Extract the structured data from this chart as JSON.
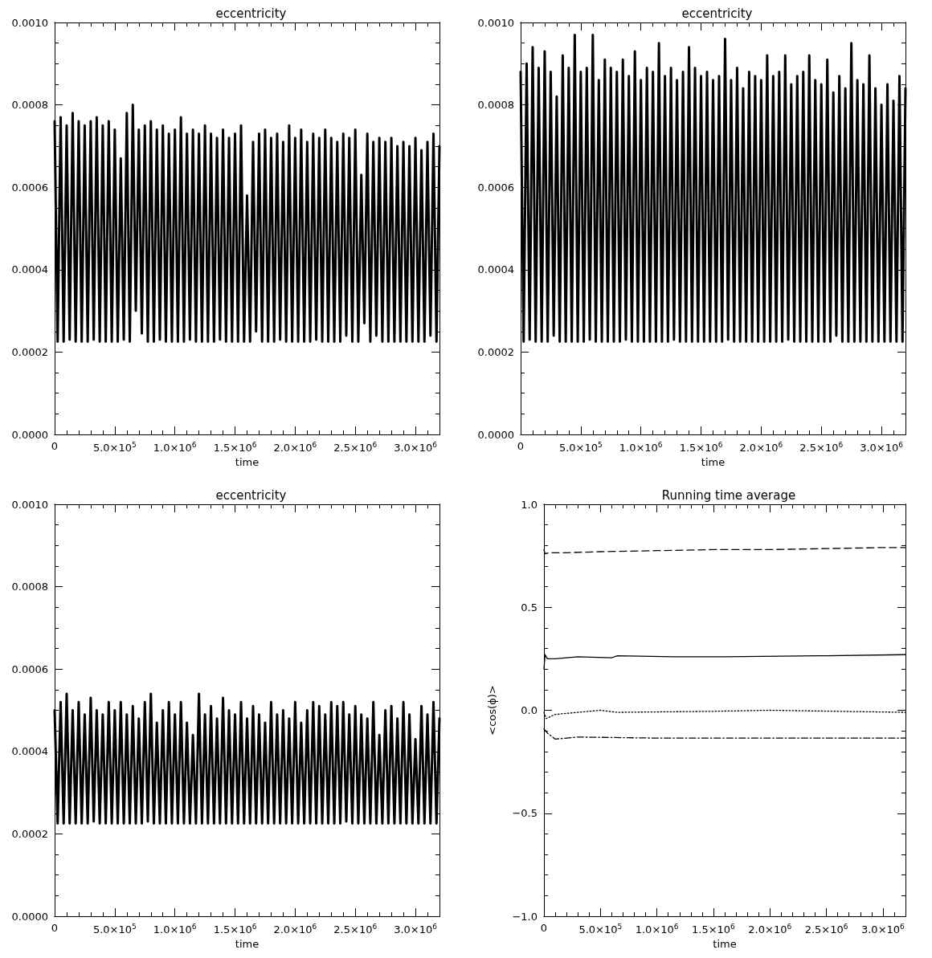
{
  "chart_data": [
    {
      "type": "line",
      "title": "eccentricity",
      "xlabel": "time",
      "marker": "none",
      "x": [
        0,
        25000,
        50000,
        75000,
        100000,
        125000,
        150000,
        175000,
        200000,
        225000,
        250000,
        275000,
        300000,
        325000,
        350000,
        375000,
        400000,
        425000,
        450000,
        475000,
        500000,
        525000,
        550000,
        575000,
        600000,
        625000,
        650000,
        675000,
        700000,
        725000,
        750000,
        775000,
        800000,
        825000,
        850000,
        875000,
        900000,
        925000,
        950000,
        975000,
        1000000,
        1025000,
        1050000,
        1075000,
        1100000,
        1125000,
        1150000,
        1175000,
        1200000,
        1225000,
        1250000,
        1275000,
        1300000,
        1325000,
        1350000,
        1375000,
        1400000,
        1425000,
        1450000,
        1475000,
        1500000,
        1525000,
        1550000,
        1575000,
        1600000,
        1625000,
        1650000,
        1675000,
        1700000,
        1725000,
        1750000,
        1775000,
        1800000,
        1825000,
        1850000,
        1875000,
        1900000,
        1925000,
        1950000,
        1975000,
        2000000,
        2025000,
        2050000,
        2075000,
        2100000,
        2125000,
        2150000,
        2175000,
        2200000,
        2225000,
        2250000,
        2275000,
        2300000,
        2325000,
        2350000,
        2375000,
        2400000,
        2425000,
        2450000,
        2475000,
        2500000,
        2525000,
        2550000,
        2575000,
        2600000,
        2625000,
        2650000,
        2675000,
        2700000,
        2725000,
        2750000,
        2775000,
        2800000,
        2825000,
        2850000,
        2875000,
        2900000,
        2925000,
        2950000,
        2975000,
        3000000,
        3025000,
        3050000,
        3075000,
        3100000,
        3125000,
        3150000,
        3175000,
        3200000
      ],
      "series": [
        {
          "color": "#000000",
          "line_style": "solid",
          "values": [
            0.00076,
            0.000225,
            0.00077,
            0.000225,
            0.00075,
            0.00023,
            0.00078,
            0.000225,
            0.00076,
            0.000225,
            0.00075,
            0.000225,
            0.00076,
            0.00023,
            0.00077,
            0.000225,
            0.00075,
            0.000225,
            0.00076,
            0.000225,
            0.00074,
            0.000225,
            0.00067,
            0.00023,
            0.00078,
            0.000225,
            0.0008,
            0.0003,
            0.00074,
            0.000245,
            0.00075,
            0.000225,
            0.00076,
            0.000225,
            0.00074,
            0.00023,
            0.00075,
            0.000225,
            0.00073,
            0.000225,
            0.00074,
            0.000225,
            0.00077,
            0.000225,
            0.00073,
            0.00023,
            0.00074,
            0.000225,
            0.00073,
            0.000225,
            0.00075,
            0.000225,
            0.00073,
            0.000225,
            0.00072,
            0.00023,
            0.00074,
            0.000225,
            0.00072,
            0.000225,
            0.00073,
            0.000225,
            0.00075,
            0.000225,
            0.00058,
            0.000225,
            0.00071,
            0.00025,
            0.00073,
            0.000225,
            0.00074,
            0.000225,
            0.00072,
            0.000225,
            0.00073,
            0.00023,
            0.00071,
            0.000225,
            0.00075,
            0.000225,
            0.00072,
            0.000225,
            0.00074,
            0.000225,
            0.00071,
            0.000225,
            0.00073,
            0.00023,
            0.00072,
            0.000225,
            0.00074,
            0.000225,
            0.00072,
            0.000225,
            0.00071,
            0.000225,
            0.00073,
            0.00024,
            0.00072,
            0.000225,
            0.00074,
            0.000225,
            0.00063,
            0.00027,
            0.00073,
            0.000225,
            0.00071,
            0.00024,
            0.00072,
            0.000225,
            0.00071,
            0.000225,
            0.00072,
            0.000225,
            0.0007,
            0.000225,
            0.00071,
            0.000225,
            0.0007,
            0.000225,
            0.00072,
            0.000225,
            0.00069,
            0.000225,
            0.00071,
            0.00024,
            0.00073,
            0.000225,
            0.0007
          ]
        }
      ],
      "xlim": [
        0,
        3200000
      ],
      "xticks": [
        {
          "value": 0,
          "label": "0"
        },
        {
          "value": 500000,
          "label": "5.0×10$^{5}$"
        },
        {
          "value": 1000000,
          "label": "1.0×10$^{6}$"
        },
        {
          "value": 1500000,
          "label": "1.5×10$^{6}$"
        },
        {
          "value": 2000000,
          "label": "2.0×10$^{6}$"
        },
        {
          "value": 2500000,
          "label": "2.5×10$^{6}$"
        },
        {
          "value": 3000000,
          "label": "3.0×10$^{6}$"
        }
      ],
      "ylim": [
        0,
        0.001
      ],
      "yticks": [
        {
          "value": 0,
          "label": "0.0000"
        },
        {
          "value": 0.0002,
          "label": "0.0002"
        },
        {
          "value": 0.0004,
          "label": "0.0004"
        },
        {
          "value": 0.0006,
          "label": "0.0006"
        },
        {
          "value": 0.0008,
          "label": "0.0008"
        },
        {
          "value": 0.001,
          "label": "0.0010"
        }
      ]
    },
    {
      "type": "line",
      "title": "eccentricity",
      "xlabel": "time",
      "marker": "none",
      "x": [
        0,
        25000,
        50000,
        75000,
        100000,
        125000,
        150000,
        175000,
        200000,
        225000,
        250000,
        275000,
        300000,
        325000,
        350000,
        375000,
        400000,
        425000,
        450000,
        475000,
        500000,
        525000,
        550000,
        575000,
        600000,
        625000,
        650000,
        675000,
        700000,
        725000,
        750000,
        775000,
        800000,
        825000,
        850000,
        875000,
        900000,
        925000,
        950000,
        975000,
        1000000,
        1025000,
        1050000,
        1075000,
        1100000,
        1125000,
        1150000,
        1175000,
        1200000,
        1225000,
        1250000,
        1275000,
        1300000,
        1325000,
        1350000,
        1375000,
        1400000,
        1425000,
        1450000,
        1475000,
        1500000,
        1525000,
        1550000,
        1575000,
        1600000,
        1625000,
        1650000,
        1675000,
        1700000,
        1725000,
        1750000,
        1775000,
        1800000,
        1825000,
        1850000,
        1875000,
        1900000,
        1925000,
        1950000,
        1975000,
        2000000,
        2025000,
        2050000,
        2075000,
        2100000,
        2125000,
        2150000,
        2175000,
        2200000,
        2225000,
        2250000,
        2275000,
        2300000,
        2325000,
        2350000,
        2375000,
        2400000,
        2425000,
        2450000,
        2475000,
        2500000,
        2525000,
        2550000,
        2575000,
        2600000,
        2625000,
        2650000,
        2675000,
        2700000,
        2725000,
        2750000,
        2775000,
        2800000,
        2825000,
        2850000,
        2875000,
        2900000,
        2925000,
        2950000,
        2975000,
        3000000,
        3025000,
        3050000,
        3075000,
        3100000,
        3125000,
        3150000,
        3175000,
        3200000
      ],
      "series": [
        {
          "color": "#000000",
          "line_style": "solid",
          "values": [
            0.00088,
            0.000225,
            0.0009,
            0.00023,
            0.00094,
            0.000225,
            0.00089,
            0.000225,
            0.00093,
            0.000225,
            0.00088,
            0.00024,
            0.00082,
            0.000225,
            0.00092,
            0.000225,
            0.00089,
            0.000225,
            0.00097,
            0.000225,
            0.00088,
            0.000225,
            0.00089,
            0.00023,
            0.00097,
            0.000225,
            0.00086,
            0.000225,
            0.00091,
            0.000225,
            0.00089,
            0.000225,
            0.00088,
            0.000225,
            0.00091,
            0.00023,
            0.00087,
            0.000225,
            0.00093,
            0.000225,
            0.00086,
            0.000225,
            0.00089,
            0.000225,
            0.00088,
            0.000225,
            0.00095,
            0.000225,
            0.00087,
            0.000225,
            0.00089,
            0.00023,
            0.00086,
            0.000225,
            0.00088,
            0.000225,
            0.00094,
            0.000225,
            0.00089,
            0.000225,
            0.00087,
            0.000225,
            0.00088,
            0.000225,
            0.00086,
            0.000225,
            0.00087,
            0.000225,
            0.00096,
            0.00023,
            0.00086,
            0.000225,
            0.00089,
            0.000225,
            0.00084,
            0.000225,
            0.00088,
            0.000225,
            0.00087,
            0.000225,
            0.00086,
            0.000225,
            0.00092,
            0.000225,
            0.00087,
            0.000225,
            0.00088,
            0.000225,
            0.00092,
            0.00023,
            0.00085,
            0.000225,
            0.00087,
            0.000225,
            0.00088,
            0.000225,
            0.00092,
            0.000225,
            0.00086,
            0.000225,
            0.00085,
            0.000225,
            0.00091,
            0.000225,
            0.00083,
            0.00024,
            0.00087,
            0.000225,
            0.00084,
            0.000225,
            0.00095,
            0.000225,
            0.00086,
            0.000225,
            0.00085,
            0.000225,
            0.00092,
            0.000225,
            0.00084,
            0.000225,
            0.0008,
            0.000225,
            0.00085,
            0.000225,
            0.00081,
            0.000225,
            0.00087,
            0.000225,
            0.00084
          ]
        }
      ],
      "xlim": [
        0,
        3200000
      ],
      "xticks": [
        {
          "value": 0,
          "label": "0"
        },
        {
          "value": 500000,
          "label": "5.0×10$^{5}$"
        },
        {
          "value": 1000000,
          "label": "1.0×10$^{6}$"
        },
        {
          "value": 1500000,
          "label": "1.5×10$^{6}$"
        },
        {
          "value": 2000000,
          "label": "2.0×10$^{6}$"
        },
        {
          "value": 2500000,
          "label": "2.5×10$^{6}$"
        },
        {
          "value": 3000000,
          "label": "3.0×10$^{6}$"
        }
      ],
      "ylim": [
        0,
        0.001
      ],
      "yticks": [
        {
          "value": 0,
          "label": "0.0000"
        },
        {
          "value": 0.0002,
          "label": "0.0002"
        },
        {
          "value": 0.0004,
          "label": "0.0004"
        },
        {
          "value": 0.0006,
          "label": "0.0006"
        },
        {
          "value": 0.0008,
          "label": "0.0008"
        },
        {
          "value": 0.001,
          "label": "0.0010"
        }
      ]
    },
    {
      "type": "line",
      "title": "eccentricity",
      "xlabel": "time",
      "marker": "none",
      "x": [
        0,
        25000,
        50000,
        75000,
        100000,
        125000,
        150000,
        175000,
        200000,
        225000,
        250000,
        275000,
        300000,
        325000,
        350000,
        375000,
        400000,
        425000,
        450000,
        475000,
        500000,
        525000,
        550000,
        575000,
        600000,
        625000,
        650000,
        675000,
        700000,
        725000,
        750000,
        775000,
        800000,
        825000,
        850000,
        875000,
        900000,
        925000,
        950000,
        975000,
        1000000,
        1025000,
        1050000,
        1075000,
        1100000,
        1125000,
        1150000,
        1175000,
        1200000,
        1225000,
        1250000,
        1275000,
        1300000,
        1325000,
        1350000,
        1375000,
        1400000,
        1425000,
        1450000,
        1475000,
        1500000,
        1525000,
        1550000,
        1575000,
        1600000,
        1625000,
        1650000,
        1675000,
        1700000,
        1725000,
        1750000,
        1775000,
        1800000,
        1825000,
        1850000,
        1875000,
        1900000,
        1925000,
        1950000,
        1975000,
        2000000,
        2025000,
        2050000,
        2075000,
        2100000,
        2125000,
        2150000,
        2175000,
        2200000,
        2225000,
        2250000,
        2275000,
        2300000,
        2325000,
        2350000,
        2375000,
        2400000,
        2425000,
        2450000,
        2475000,
        2500000,
        2525000,
        2550000,
        2575000,
        2600000,
        2625000,
        2650000,
        2675000,
        2700000,
        2725000,
        2750000,
        2775000,
        2800000,
        2825000,
        2850000,
        2875000,
        2900000,
        2925000,
        2950000,
        2975000,
        3000000,
        3025000,
        3050000,
        3075000,
        3100000,
        3125000,
        3150000,
        3175000,
        3200000
      ],
      "series": [
        {
          "color": "#000000",
          "line_style": "solid",
          "values": [
            0.0005,
            0.000225,
            0.00052,
            0.000225,
            0.00054,
            0.000225,
            0.0005,
            0.000225,
            0.00052,
            0.000225,
            0.00049,
            0.000225,
            0.00053,
            0.00023,
            0.0005,
            0.000225,
            0.00049,
            0.000225,
            0.00052,
            0.000225,
            0.0005,
            0.000225,
            0.00052,
            0.000225,
            0.00049,
            0.000225,
            0.00051,
            0.000225,
            0.00048,
            0.000225,
            0.00052,
            0.00023,
            0.00054,
            0.000225,
            0.00047,
            0.000225,
            0.0005,
            0.000225,
            0.00052,
            0.000225,
            0.00049,
            0.000225,
            0.00052,
            0.000225,
            0.00047,
            0.000225,
            0.00044,
            0.000225,
            0.00054,
            0.000225,
            0.00049,
            0.000225,
            0.00051,
            0.000225,
            0.00048,
            0.000225,
            0.00053,
            0.000225,
            0.0005,
            0.000225,
            0.00049,
            0.000225,
            0.00052,
            0.000225,
            0.00048,
            0.000225,
            0.00051,
            0.000225,
            0.00049,
            0.000225,
            0.00047,
            0.000225,
            0.00052,
            0.000225,
            0.00049,
            0.000225,
            0.0005,
            0.000225,
            0.00048,
            0.000225,
            0.00052,
            0.000225,
            0.00047,
            0.000225,
            0.0005,
            0.000225,
            0.00052,
            0.000225,
            0.00051,
            0.000225,
            0.00049,
            0.000225,
            0.00052,
            0.000225,
            0.00051,
            0.000225,
            0.00052,
            0.00023,
            0.00049,
            0.000225,
            0.00051,
            0.000225,
            0.00049,
            0.000225,
            0.00048,
            0.000225,
            0.00052,
            0.000225,
            0.00044,
            0.000225,
            0.0005,
            0.000225,
            0.00051,
            0.000225,
            0.00048,
            0.000225,
            0.00052,
            0.000225,
            0.00049,
            0.000225,
            0.00043,
            0.000225,
            0.00051,
            0.000225,
            0.00049,
            0.000225,
            0.00052,
            0.000225,
            0.00048
          ]
        }
      ],
      "xlim": [
        0,
        3200000
      ],
      "xticks": [
        {
          "value": 0,
          "label": "0"
        },
        {
          "value": 500000,
          "label": "5.0×10$^{5}$"
        },
        {
          "value": 1000000,
          "label": "1.0×10$^{6}$"
        },
        {
          "value": 1500000,
          "label": "1.5×10$^{6}$"
        },
        {
          "value": 2000000,
          "label": "2.0×10$^{6}$"
        },
        {
          "value": 2500000,
          "label": "2.5×10$^{6}$"
        },
        {
          "value": 3000000,
          "label": "3.0×10$^{6}$"
        }
      ],
      "ylim": [
        0,
        0.001
      ],
      "yticks": [
        {
          "value": 0,
          "label": "0.0000"
        },
        {
          "value": 0.0002,
          "label": "0.0002"
        },
        {
          "value": 0.0004,
          "label": "0.0004"
        },
        {
          "value": 0.0006,
          "label": "0.0006"
        },
        {
          "value": 0.0008,
          "label": "0.0008"
        },
        {
          "value": 0.001,
          "label": "0.0010"
        }
      ]
    },
    {
      "type": "line",
      "title": "Running time average",
      "xlabel": "time",
      "ylabel": "<cos(ϕ)>",
      "marker": "none",
      "series": [
        {
          "color": "#000000",
          "line_style": "dashed",
          "x": [
            0,
            10000,
            50000,
            200000,
            500000,
            1000000,
            1500000,
            2000000,
            2500000,
            3000000,
            3200000
          ],
          "values": [
            0.78,
            0.76,
            0.765,
            0.765,
            0.77,
            0.775,
            0.78,
            0.78,
            0.785,
            0.79,
            0.79
          ]
        },
        {
          "color": "#000000",
          "line_style": "solid",
          "x": [
            0,
            10000,
            30000,
            100000,
            300000,
            600000,
            650000,
            1150000,
            1600000,
            2500000,
            3200000
          ],
          "values": [
            0.2,
            0.27,
            0.25,
            0.25,
            0.26,
            0.255,
            0.265,
            0.26,
            0.26,
            0.265,
            0.27
          ]
        },
        {
          "color": "#000000",
          "line_style": "dotted",
          "x": [
            0,
            20000,
            60000,
            100000,
            300000,
            500000,
            650000,
            1500000,
            2000000,
            3200000
          ],
          "values": [
            -0.01,
            -0.04,
            -0.03,
            -0.02,
            -0.01,
            0.0,
            -0.01,
            -0.005,
            0.0,
            -0.01
          ]
        },
        {
          "color": "#000000",
          "line_style": "dashdot",
          "x": [
            0,
            30000,
            100000,
            300000,
            1000000,
            2000000,
            3200000
          ],
          "values": [
            -0.09,
            -0.11,
            -0.14,
            -0.13,
            -0.135,
            -0.135,
            -0.135
          ]
        }
      ],
      "xlim": [
        0,
        3200000
      ],
      "xticks": [
        {
          "value": 0,
          "label": "0"
        },
        {
          "value": 500000,
          "label": "5.0×10$^{5}$"
        },
        {
          "value": 1000000,
          "label": "1.0×10$^{6}$"
        },
        {
          "value": 1500000,
          "label": "1.5×10$^{6}$"
        },
        {
          "value": 2000000,
          "label": "2.0×10$^{6}$"
        },
        {
          "value": 2500000,
          "label": "2.5×10$^{6}$"
        },
        {
          "value": 3000000,
          "label": "3.0×10$^{6}$"
        }
      ],
      "ylim": [
        -1,
        1
      ],
      "yticks": [
        {
          "value": -1,
          "label": "−1.0"
        },
        {
          "value": -0.5,
          "label": "−0.5"
        },
        {
          "value": 0,
          "label": "0.0"
        },
        {
          "value": 0.5,
          "label": "0.5"
        },
        {
          "value": 1,
          "label": "1.0"
        }
      ]
    }
  ]
}
